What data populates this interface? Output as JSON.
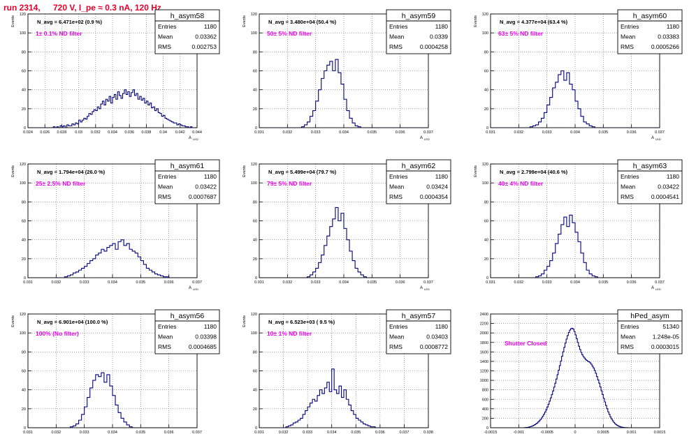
{
  "header": {
    "run_label": "run 2314,",
    "conditions": "720 V, I_pe ≈ 0.3 nA, 120 Hz"
  },
  "colors": {
    "header": "#e8002a",
    "histogram": "#00007f",
    "filter_label": "#ee00ee",
    "grid": "#666666",
    "frame": "#000000"
  },
  "stats_labels": {
    "entries": "Entries",
    "mean": "Mean",
    "rms": "RMS"
  },
  "chart_data": [
    {
      "type": "histogram",
      "name": "h_asym58",
      "nav_label": "N_avg = 6.471e+02 (0.9 %)",
      "filter_label": "1± 0.1% ND filter",
      "entries": "1180",
      "mean": "0.03362",
      "rms": "0.002753",
      "ylabel": "Events",
      "xlabel": "A",
      "xlabel_sub": "LED",
      "xlim": [
        0.024,
        0.044
      ],
      "ylim": [
        0,
        120
      ],
      "xticks": [
        "0.024",
        "0.026",
        "0.028",
        "0.03",
        "0.032",
        "0.034",
        "0.036",
        "0.038",
        "0.04",
        "0.042",
        "0.044"
      ],
      "yticks": [
        "0",
        "20",
        "40",
        "60",
        "80",
        "100",
        "120"
      ],
      "bins": {
        "x0": 0.024,
        "width": 0.0002,
        "counts": [
          0,
          0,
          0,
          0,
          0,
          0,
          0,
          0,
          0,
          0,
          0,
          0,
          0,
          0,
          0,
          1,
          0,
          1,
          0,
          2,
          1,
          2,
          0,
          3,
          2,
          2,
          4,
          3,
          5,
          4,
          8,
          6,
          8,
          10,
          9,
          12,
          15,
          14,
          17,
          19,
          18,
          22,
          20,
          25,
          28,
          24,
          30,
          28,
          33,
          26,
          32,
          35,
          30,
          38,
          34,
          31,
          36,
          40,
          35,
          38,
          33,
          37,
          40,
          34,
          36,
          30,
          33,
          29,
          31,
          26,
          28,
          24,
          26,
          21,
          22,
          18,
          20,
          16,
          15,
          12,
          13,
          10,
          9,
          8,
          7,
          6,
          5,
          5,
          3,
          4,
          3,
          2,
          2,
          1,
          1,
          0,
          1,
          0,
          0,
          0
        ]
      }
    },
    {
      "type": "histogram",
      "name": "h_asym59",
      "nav_label": "N_avg = 3.480e+04 (50.4 %)",
      "filter_label": "50± 5% ND filter",
      "entries": "1180",
      "mean": "0.0339",
      "rms": "0.0004258",
      "ylabel": "Events",
      "xlabel": "A",
      "xlabel_sub": "LED",
      "xlim": [
        0.031,
        0.037
      ],
      "ylim": [
        0,
        120
      ],
      "xticks": [
        "0.031",
        "0.032",
        "0.033",
        "0.034",
        "0.035",
        "0.036",
        "0.037"
      ],
      "yticks": [
        "0",
        "20",
        "40",
        "60",
        "80",
        "100",
        "120"
      ],
      "bins": {
        "x0": 0.031,
        "width": 0.0001,
        "counts": [
          0,
          0,
          0,
          0,
          0,
          0,
          0,
          0,
          0,
          0,
          0,
          0,
          0,
          0,
          0,
          1,
          3,
          6,
          12,
          18,
          28,
          40,
          52,
          60,
          66,
          70,
          60,
          72,
          58,
          46,
          30,
          18,
          10,
          5,
          2,
          1,
          0,
          0,
          0,
          0,
          0,
          0,
          0,
          0,
          0,
          0,
          0,
          0,
          0,
          0,
          0,
          0,
          0,
          0,
          0,
          0,
          0,
          0,
          0,
          0
        ]
      }
    },
    {
      "type": "histogram",
      "name": "h_asym60",
      "nav_label": "N_avg = 4.377e+04 (63.4 %)",
      "filter_label": "63± 5% ND filter",
      "entries": "1180",
      "mean": "0.03383",
      "rms": "0.0005266",
      "ylabel": "Events",
      "xlabel": "A",
      "xlabel_sub": "LED",
      "xlim": [
        0.031,
        0.037
      ],
      "ylim": [
        0,
        120
      ],
      "xticks": [
        "0.031",
        "0.032",
        "0.033",
        "0.034",
        "0.035",
        "0.036",
        "0.037"
      ],
      "yticks": [
        "0",
        "20",
        "40",
        "60",
        "80",
        "100",
        "120"
      ],
      "bins": {
        "x0": 0.031,
        "width": 0.0001,
        "counts": [
          0,
          0,
          0,
          0,
          0,
          0,
          0,
          0,
          0,
          0,
          0,
          0,
          0,
          0,
          1,
          2,
          3,
          6,
          10,
          16,
          24,
          32,
          42,
          48,
          56,
          60,
          50,
          58,
          46,
          40,
          28,
          20,
          12,
          6,
          4,
          2,
          1,
          0,
          0,
          0,
          0,
          0,
          0,
          0,
          0,
          0,
          0,
          0,
          0,
          0,
          0,
          0,
          0,
          0,
          0,
          0,
          0,
          0,
          0,
          0
        ]
      }
    },
    {
      "type": "histogram",
      "name": "h_asym61",
      "nav_label": "N_avg = 1.794e+04 (26.0 %)",
      "filter_label": "25± 2.5% ND filter",
      "entries": "1180",
      "mean": "0.03422",
      "rms": "0.0007687",
      "ylabel": "Events",
      "xlabel": "A",
      "xlabel_sub": "LED",
      "xlim": [
        0.031,
        0.037
      ],
      "ylim": [
        0,
        120
      ],
      "xticks": [
        "0.031",
        "0.032",
        "0.033",
        "0.034",
        "0.035",
        "0.036",
        "0.037"
      ],
      "yticks": [
        "0",
        "20",
        "40",
        "60",
        "80",
        "100",
        "120"
      ],
      "bins": {
        "x0": 0.031,
        "width": 0.0001,
        "counts": [
          0,
          0,
          0,
          0,
          0,
          0,
          0,
          0,
          0,
          0,
          0,
          0,
          0,
          1,
          2,
          3,
          5,
          6,
          8,
          10,
          12,
          15,
          18,
          20,
          24,
          26,
          30,
          28,
          32,
          34,
          36,
          30,
          38,
          40,
          34,
          36,
          30,
          28,
          26,
          22,
          18,
          14,
          10,
          8,
          6,
          4,
          3,
          2,
          1,
          1,
          0,
          0,
          0,
          0,
          0,
          0,
          0,
          0,
          0,
          0
        ]
      }
    },
    {
      "type": "histogram",
      "name": "h_asym62",
      "nav_label": "N_avg = 5.499e+04 (79.7 %)",
      "filter_label": "79± 5% ND filter",
      "entries": "1180",
      "mean": "0.03424",
      "rms": "0.0004354",
      "ylabel": "Events",
      "xlabel": "A",
      "xlabel_sub": "LED",
      "xlim": [
        0.031,
        0.037
      ],
      "ylim": [
        0,
        120
      ],
      "xticks": [
        "0.031",
        "0.032",
        "0.033",
        "0.034",
        "0.035",
        "0.036",
        "0.037"
      ],
      "yticks": [
        "0",
        "20",
        "40",
        "60",
        "80",
        "100",
        "120"
      ],
      "bins": {
        "x0": 0.031,
        "width": 0.0001,
        "counts": [
          0,
          0,
          0,
          0,
          0,
          0,
          0,
          0,
          0,
          0,
          0,
          0,
          0,
          0,
          0,
          0,
          0,
          1,
          3,
          6,
          10,
          16,
          24,
          34,
          44,
          54,
          62,
          74,
          60,
          68,
          52,
          40,
          28,
          18,
          10,
          6,
          3,
          1,
          0,
          0,
          0,
          0,
          0,
          0,
          0,
          0,
          0,
          0,
          0,
          0,
          0,
          0,
          0,
          0,
          0,
          0,
          0,
          0,
          0,
          0
        ]
      }
    },
    {
      "type": "histogram",
      "name": "h_asym63",
      "nav_label": "N_avg = 2.799e+04 (40.6 %)",
      "filter_label": "40± 4% ND filter",
      "entries": "1180",
      "mean": "0.03422",
      "rms": "0.0004541",
      "ylabel": "Events",
      "xlabel": "A",
      "xlabel_sub": "LED",
      "xlim": [
        0.031,
        0.037
      ],
      "ylim": [
        0,
        120
      ],
      "xticks": [
        "0.031",
        "0.032",
        "0.033",
        "0.034",
        "0.035",
        "0.036",
        "0.037"
      ],
      "yticks": [
        "0",
        "20",
        "40",
        "60",
        "80",
        "100",
        "120"
      ],
      "bins": {
        "x0": 0.031,
        "width": 0.0001,
        "counts": [
          0,
          0,
          0,
          0,
          0,
          0,
          0,
          0,
          0,
          0,
          0,
          0,
          0,
          0,
          0,
          0,
          1,
          2,
          4,
          8,
          12,
          18,
          26,
          36,
          46,
          56,
          64,
          54,
          66,
          58,
          48,
          38,
          26,
          16,
          8,
          4,
          2,
          1,
          0,
          0,
          0,
          0,
          0,
          0,
          0,
          0,
          0,
          0,
          0,
          0,
          0,
          0,
          0,
          0,
          0,
          0,
          0,
          0,
          0,
          0
        ]
      }
    },
    {
      "type": "histogram",
      "name": "h_asym56",
      "nav_label": "N_avg = 6.901e+04 (100.0 %)",
      "filter_label": "100% (No filter)",
      "entries": "1180",
      "mean": "0.03398",
      "rms": "0.0004685",
      "ylabel": "Events",
      "xlabel": "A",
      "xlabel_sub": "LED",
      "xlim": [
        0.031,
        0.037
      ],
      "ylim": [
        0,
        120
      ],
      "xticks": [
        "0.031",
        "0.032",
        "0.033",
        "0.034",
        "0.035",
        "0.036",
        "0.037"
      ],
      "yticks": [
        "0",
        "20",
        "40",
        "60",
        "80",
        "100",
        "120"
      ],
      "bins": {
        "x0": 0.031,
        "width": 0.0001,
        "counts": [
          0,
          0,
          0,
          0,
          0,
          0,
          0,
          0,
          0,
          0,
          0,
          0,
          0,
          0,
          0,
          1,
          2,
          4,
          8,
          14,
          22,
          32,
          42,
          50,
          56,
          54,
          58,
          48,
          56,
          44,
          34,
          24,
          16,
          10,
          6,
          3,
          1,
          0,
          0,
          0,
          0,
          0,
          0,
          0,
          0,
          0,
          0,
          0,
          0,
          0,
          0,
          0,
          0,
          0,
          0,
          0,
          0,
          0,
          0,
          0
        ]
      }
    },
    {
      "type": "histogram",
      "name": "h_asym57",
      "nav_label": "N_avg = 6.523e+03 ( 9.5 %)",
      "filter_label": "10± 1% ND filter",
      "entries": "1180",
      "mean": "0.03403",
      "rms": "0.0008772",
      "ylabel": "Events",
      "xlabel": "A",
      "xlabel_sub": "LED",
      "xlim": [
        0.031,
        0.038
      ],
      "ylim": [
        0,
        120
      ],
      "xticks": [
        "0.031",
        "0.032",
        "0.033",
        "0.034",
        "0.035",
        "0.036",
        "0.037",
        "0.038"
      ],
      "yticks": [
        "0",
        "20",
        "40",
        "60",
        "80",
        "100",
        "120"
      ],
      "bins": {
        "x0": 0.031,
        "width": 0.0001,
        "counts": [
          0,
          0,
          0,
          0,
          0,
          0,
          0,
          0,
          0,
          0,
          0,
          1,
          2,
          3,
          5,
          6,
          8,
          10,
          14,
          18,
          22,
          26,
          30,
          28,
          34,
          40,
          36,
          42,
          48,
          38,
          62,
          40,
          36,
          44,
          32,
          40,
          30,
          24,
          18,
          14,
          10,
          8,
          6,
          4,
          3,
          2,
          1,
          1,
          0,
          0,
          0,
          0,
          0,
          0,
          0,
          0,
          0,
          0,
          0,
          0,
          0,
          0,
          0,
          0,
          0,
          0,
          0,
          0,
          0,
          0
        ]
      }
    },
    {
      "type": "histogram",
      "name": "hPed_asym",
      "nav_label": "",
      "filter_label": "Shutter Closed",
      "entries": "51340",
      "mean": "1.248e-05",
      "rms": "0.0003015",
      "ylabel": "",
      "xlabel": "",
      "xlabel_sub": "",
      "xlim": [
        -0.0015,
        0.0015
      ],
      "ylim": [
        0,
        2400
      ],
      "xticks": [
        "-0.0015",
        "-0.001",
        "-0.0005",
        "0",
        "0.0005",
        "0.001",
        "0.0015"
      ],
      "yticks": [
        "0",
        "200",
        "400",
        "600",
        "800",
        "1000",
        "1200",
        "1400",
        "1600",
        "1800",
        "2000",
        "2200",
        "2400"
      ],
      "bins": {
        "x0": -0.0015,
        "width": 2e-05,
        "counts": [
          0,
          0,
          0,
          0,
          0,
          0,
          0,
          0,
          0,
          0,
          0,
          0,
          0,
          0,
          0,
          0,
          0,
          0,
          0,
          0,
          0,
          0,
          0,
          0,
          0,
          0,
          0,
          0,
          0,
          0,
          2,
          4,
          6,
          10,
          16,
          22,
          30,
          40,
          52,
          66,
          82,
          100,
          122,
          148,
          176,
          208,
          244,
          284,
          330,
          380,
          436,
          496,
          560,
          628,
          700,
          776,
          856,
          940,
          1028,
          1120,
          1214,
          1310,
          1408,
          1506,
          1602,
          1696,
          1786,
          1870,
          1946,
          2010,
          2060,
          2090,
          2100,
          2080,
          2030,
          1960,
          1880,
          1800,
          1720,
          1650,
          1590,
          1540,
          1500,
          1470,
          1440,
          1420,
          1400,
          1390,
          1370,
          1340,
          1300,
          1260,
          1210,
          1150,
          1080,
          1010,
          940,
          860,
          780,
          700,
          620,
          545,
          470,
          400,
          335,
          280,
          228,
          184,
          146,
          114,
          88,
          66,
          50,
          36,
          26,
          18,
          12,
          8,
          5,
          3,
          2,
          1,
          0,
          0,
          0,
          0,
          0,
          0,
          0,
          0,
          0,
          0,
          0,
          0,
          0,
          0,
          0,
          0,
          0,
          0,
          0,
          0,
          0,
          0,
          0,
          0,
          0,
          0,
          0,
          0,
          0,
          0,
          0
        ]
      }
    }
  ]
}
